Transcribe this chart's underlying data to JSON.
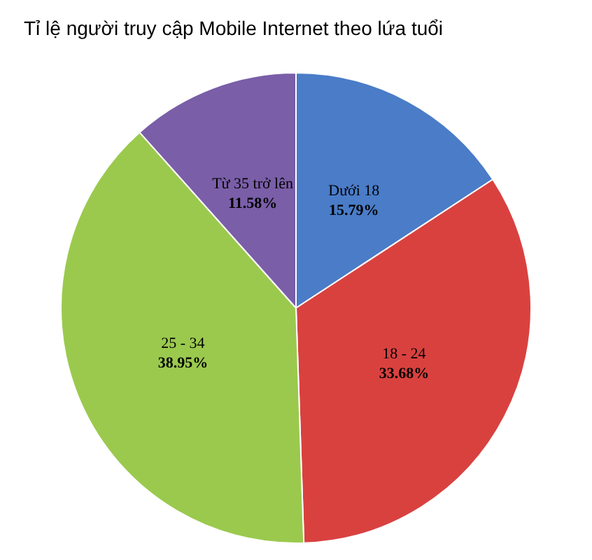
{
  "chart_data": {
    "type": "pie",
    "title": "Tỉ lệ người truy cập Mobile Internet theo lứa tuổi",
    "categories": [
      "Dưới 18",
      "18 - 24",
      "25 - 34",
      "Từ 35 trở lên"
    ],
    "values": [
      15.79,
      33.68,
      38.95,
      11.58
    ],
    "value_labels": [
      "15.79%",
      "33.68%",
      "38.95%",
      "11.58%"
    ],
    "colors": [
      "#4a7cc8",
      "#d9413f",
      "#9bc94e",
      "#7a5ea8"
    ]
  }
}
